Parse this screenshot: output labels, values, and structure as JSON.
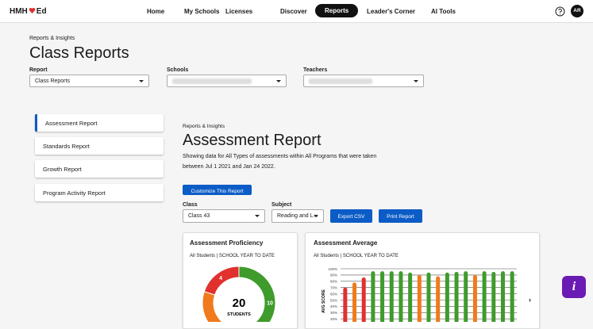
{
  "nav": {
    "logo_left": "HMH",
    "logo_right": "Ed",
    "items": [
      "Home",
      "My Schools",
      "Licenses",
      "Discover",
      "Reports",
      "Leader's Corner",
      "AI Tools"
    ],
    "active": 4,
    "avatar": "AR"
  },
  "header": {
    "breadcrumb": "Reports & Insights",
    "title": "Class Reports"
  },
  "filters": [
    {
      "label": "Report",
      "value": "Class Reports"
    },
    {
      "label": "Schools"
    },
    {
      "label": "Teachers"
    }
  ],
  "sidebar": {
    "items": [
      "Assessment Report",
      "Standards Report",
      "Growth Report",
      "Program Activity Report"
    ],
    "active": 0
  },
  "main": {
    "breadcrumb": "Reports & Insights",
    "title": "Assessment Report",
    "description": [
      "Showing data for All Types of assessments within All Programs that were taken",
      "between Jul 1 2021 and Jan 24 2022."
    ],
    "customize_button": "Customize This Report",
    "class_label": "Class",
    "class_value": "Class 43",
    "subject_label": "Subject",
    "subject_value": "Reading and L...",
    "export_button": "Export CSV",
    "print_button": "Print Report"
  },
  "proficiency_card": {
    "title": "Assessment Proficiency",
    "subtitle": "All Students  |  SCHOOL YEAR TO DATE",
    "chart_data": {
      "type": "pie",
      "donut": true,
      "center_value": 20,
      "center_label": "STUDENTS",
      "values": [
        4,
        6,
        10
      ],
      "value_labels": [
        "4",
        null,
        "10"
      ],
      "colors": [
        "#e0312f",
        "#f07a1c",
        "#3f9b2c"
      ]
    }
  },
  "average_card": {
    "title": "Assessment Average",
    "subtitle": "All Students  |  SCHOOL YEAR TO DATE",
    "chart_data": {
      "type": "bar",
      "y_label": "AVG SCORE",
      "ylim": [
        0,
        100
      ],
      "yticks": [
        {
          "value": 20,
          "label": "20%"
        },
        {
          "value": 30,
          "label": "30%"
        },
        {
          "value": 40,
          "label": "40%"
        },
        {
          "value": 50,
          "label": "50%"
        },
        {
          "value": 60,
          "label": "60%"
        },
        {
          "value": 70,
          "label": "70%"
        },
        {
          "value": 80,
          "label": "80%"
        },
        {
          "value": 90,
          "label": "90%"
        },
        {
          "value": 100,
          "label": "100%"
        }
      ],
      "grid": true,
      "values": [
        70,
        78,
        86,
        96,
        96,
        96,
        96,
        94,
        90,
        94,
        88,
        94,
        95,
        96,
        90,
        96,
        95,
        96,
        96
      ],
      "colors": [
        "#e0312f",
        "#f07a1c",
        "#e0312f",
        "#3f9b2c",
        "#3f9b2c",
        "#3f9b2c",
        "#3f9b2c",
        "#3f9b2c",
        "#f07a1c",
        "#3f9b2c",
        "#f07a1c",
        "#3f9b2c",
        "#3f9b2c",
        "#3f9b2c",
        "#f07a1c",
        "#3f9b2c",
        "#3f9b2c",
        "#3f9b2c",
        "#3f9b2c"
      ]
    }
  }
}
